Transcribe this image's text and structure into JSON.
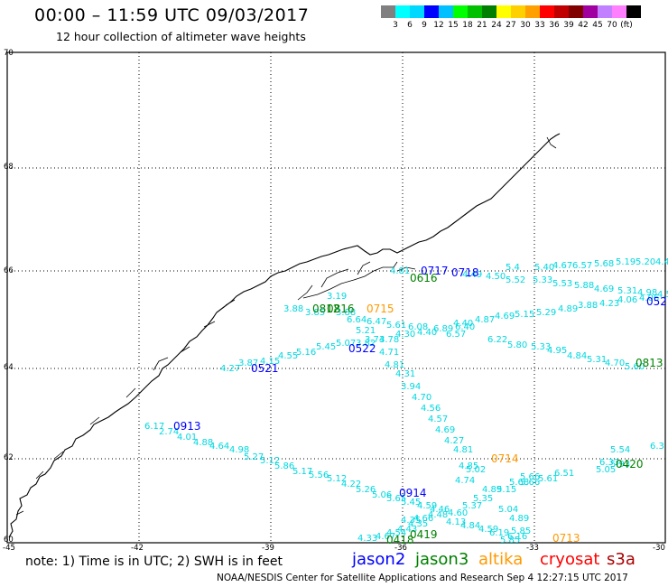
{
  "header": {
    "title": "00:00 – 11:59 UTC 09/03/2017",
    "subtitle": "12 hour collection of altimeter wave heights"
  },
  "color_scale": {
    "colors": [
      "#808080",
      "#00ffff",
      "#00d8ff",
      "#0000ff",
      "#00c0ff",
      "#00ff00",
      "#00c000",
      "#008000",
      "#ffff00",
      "#ffd000",
      "#ffa000",
      "#ff0000",
      "#c00000",
      "#800000",
      "#a000a0",
      "#c080ff",
      "#ff80ff",
      "#000000"
    ],
    "labels": [
      "3",
      "6",
      "9",
      "12",
      "15",
      "18",
      "21",
      "24",
      "27",
      "30",
      "33",
      "36",
      "39",
      "42",
      "45",
      "70",
      "(ft)"
    ]
  },
  "map": {
    "lat_labels": [
      "70",
      "68",
      "66",
      "64",
      "62"
    ],
    "lon_labels": [
      "-45",
      "-42",
      "-39",
      "-36",
      "-33",
      "-30"
    ],
    "corner_lat": "60"
  },
  "wave_heights": [
    "3.19",
    "3.88",
    "3.85",
    "3.88",
    "6.64",
    "6.47",
    "5.61",
    "6.08",
    "6.89",
    "6.40",
    "4.40",
    "4.87",
    "4.69",
    "5.15",
    "5.29",
    "4.89",
    "3.88",
    "4.23",
    "4.06",
    "4.06",
    "5.21",
    "3.74",
    "3.78",
    "4.30",
    "4.40",
    "6.57",
    "6.22",
    "5.80",
    "5.33",
    "4.95",
    "4.84",
    "5.31",
    "4.70",
    "5.60",
    "4.81",
    "5.4",
    "4.50",
    "4.49",
    "5.52",
    "5.33",
    "5.53",
    "5.88",
    "4.69",
    "5.31",
    "4.98",
    "4.5",
    "5.40",
    "4.67",
    "6.57",
    "5.68",
    "5.19",
    "5.20",
    "4.4",
    "3.87",
    "4.15",
    "4.55",
    "5.16",
    "5.45",
    "5.07",
    "3.82",
    "4.71",
    "4.81",
    "4.27",
    "4.31",
    "3.94",
    "4.70",
    "4.56",
    "4.57",
    "4.69",
    "4.27",
    "4.81",
    "4.85",
    "5.02",
    "4.74",
    "4.89",
    "5.15",
    "5.68",
    "5.66",
    "5.04",
    "4.89",
    "5.85",
    "6.16",
    "5.85",
    "6.17",
    "2.74",
    "4.01",
    "4.88",
    "4.64",
    "4.98",
    "5.27",
    "5.12",
    "5.86",
    "5.17",
    "5.56",
    "5.12",
    "4.22",
    "5.26",
    "5.06",
    "5.65",
    "5.45",
    "4.59",
    "4.46",
    "4.60",
    "5.37",
    "5.35",
    "6.51",
    "5.61",
    "5.66",
    "5.05",
    "5.93",
    "6.33",
    "5.54",
    "6.3",
    "4.35",
    "4.66",
    "4.48",
    "4.13",
    "4.84",
    "4.59",
    "6.19",
    "4.33",
    "4.67",
    "4.54",
    "4.43",
    "4.35"
  ],
  "pass_times": [
    {
      "label": "0913",
      "sat": "jason2"
    },
    {
      "label": "0521",
      "sat": "jason2"
    },
    {
      "label": "0522",
      "sat": "jason2"
    },
    {
      "label": "0914",
      "sat": "jason2"
    },
    {
      "label": "0717",
      "sat": "jason2"
    },
    {
      "label": "0718",
      "sat": "jason2"
    },
    {
      "label": "052",
      "sat": "jason2"
    },
    {
      "label": "0616",
      "sat": "jason3"
    },
    {
      "label": "0812",
      "sat": "jason3"
    },
    {
      "label": "0813",
      "sat": "jason3"
    },
    {
      "label": "0420",
      "sat": "jason3"
    },
    {
      "label": "0419",
      "sat": "jason3"
    },
    {
      "label": "0418",
      "sat": "jason3"
    },
    {
      "label": "0715",
      "sat": "altika"
    },
    {
      "label": "0714",
      "sat": "altika"
    },
    {
      "label": "0713",
      "sat": "altika"
    },
    {
      "label": "0816",
      "sat": "jason3"
    }
  ],
  "footer": {
    "note": "note:  1) Time is in UTC;  2) SWH is in feet",
    "legend": [
      {
        "name": "jason2",
        "color": "#0000ff"
      },
      {
        "name": "jason3",
        "color": "#008000"
      },
      {
        "name": "altika",
        "color": "#ff9900"
      },
      {
        "name": "cryosat",
        "color": "#ff0000"
      },
      {
        "name": "s3a",
        "color": "#aa0000"
      }
    ],
    "credit": "NOAA/NESDIS Center for Satellite Applications and Research    Sep  4 12:27:15 UTC 2017"
  }
}
